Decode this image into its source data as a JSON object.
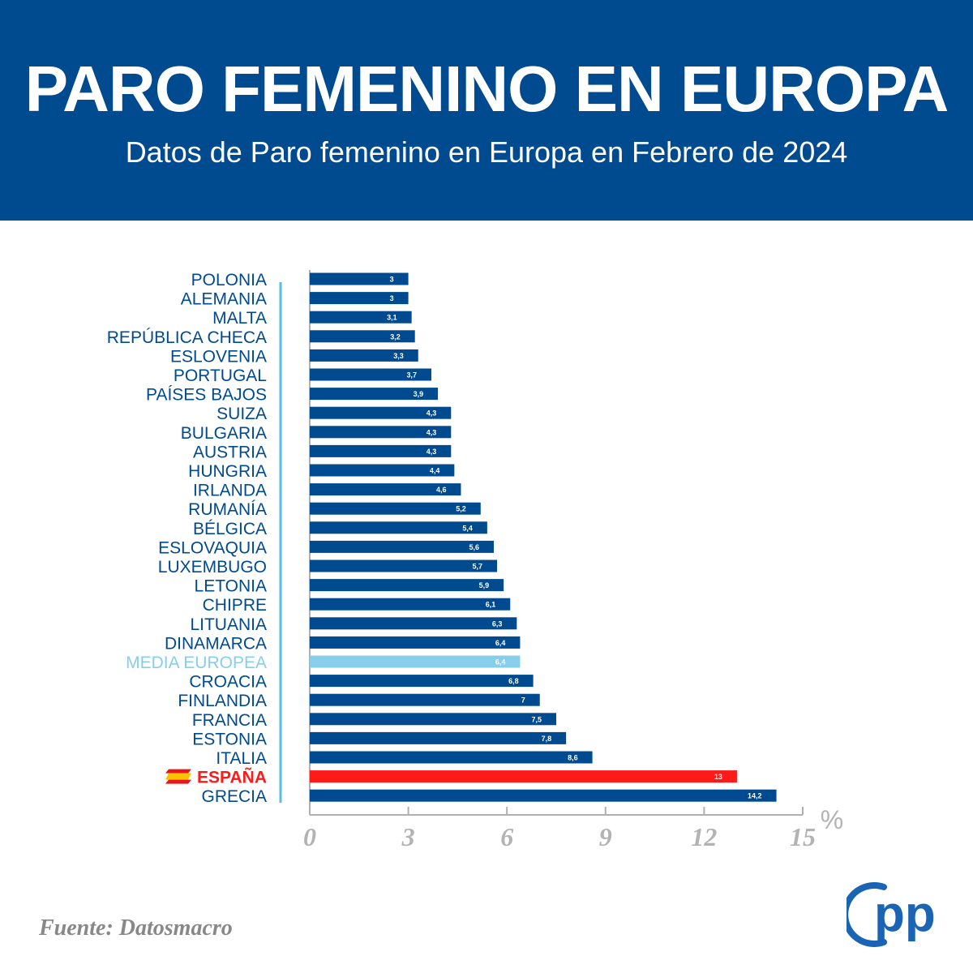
{
  "header": {
    "title": "PARO FEMENINO EN EUROPA",
    "subtitle": "Datos de Paro femenino en Europa en Febrero de 2024"
  },
  "chart_data": {
    "type": "bar",
    "orientation": "horizontal",
    "title": "PARO FEMENINO EN EUROPA",
    "subtitle": "Datos de Paro femenino en Europa en Febrero de 2024",
    "xlabel": "%",
    "ylabel": "",
    "xlim": [
      0,
      15
    ],
    "x_ticks": [
      0,
      3,
      6,
      9,
      12,
      15
    ],
    "grid": false,
    "legend": "none",
    "categories": [
      "POLONIA",
      "ALEMANIA",
      "MALTA",
      "REPÚBLICA CHECA",
      "ESLOVENIA",
      "PORTUGAL",
      "PAÍSES BAJOS",
      "SUIZA",
      "BULGARIA",
      "AUSTRIA",
      "HUNGRIA",
      "IRLANDA",
      "RUMANÍA",
      "BÉLGICA",
      "ESLOVAQUIA",
      "LUXEMBUGO",
      "LETONIA",
      "CHIPRE",
      "LITUANIA",
      "DINAMARCA",
      "MEDIA EUROPEA",
      "CROACIA",
      "FINLANDIA",
      "FRANCIA",
      "ESTONIA",
      "ITALIA",
      "ESPAÑA",
      "GRECIA"
    ],
    "values": [
      3,
      3,
      3.1,
      3.2,
      3.3,
      3.7,
      3.9,
      4.3,
      4.3,
      4.3,
      4.4,
      4.6,
      5.2,
      5.4,
      5.6,
      5.7,
      5.9,
      6.1,
      6.3,
      6.4,
      6.4,
      6.8,
      7,
      7.5,
      7.8,
      8.6,
      13,
      14.2
    ],
    "value_labels": [
      "3",
      "3",
      "3,1",
      "3,2",
      "3,3",
      "3,7",
      "3,9",
      "4,3",
      "4,3",
      "4,3",
      "4,4",
      "4,6",
      "5,2",
      "5,4",
      "5,6",
      "5,7",
      "5,9",
      "6,1",
      "6,3",
      "6,4",
      "6,4",
      "6,8",
      "7",
      "7,5",
      "7,8",
      "8,6",
      "13",
      "14,2"
    ],
    "highlight": {
      "MEDIA EUROPEA": {
        "bar": "#87ceeb",
        "label": "#87ceeb"
      },
      "ESPAÑA": {
        "bar": "#ff1a1a",
        "label": "#ff1a1a"
      }
    },
    "colors": {
      "bar": "#004a8f",
      "label": "#004a8f",
      "axis": "#b0b0b0",
      "accent_line": "#55bde6"
    }
  },
  "footer": {
    "source": "Fuente: Datosmacro",
    "logo_text": "pp"
  },
  "icons": {
    "spain_flag": "spain-flag-icon",
    "logo": "pp-logo-icon"
  }
}
